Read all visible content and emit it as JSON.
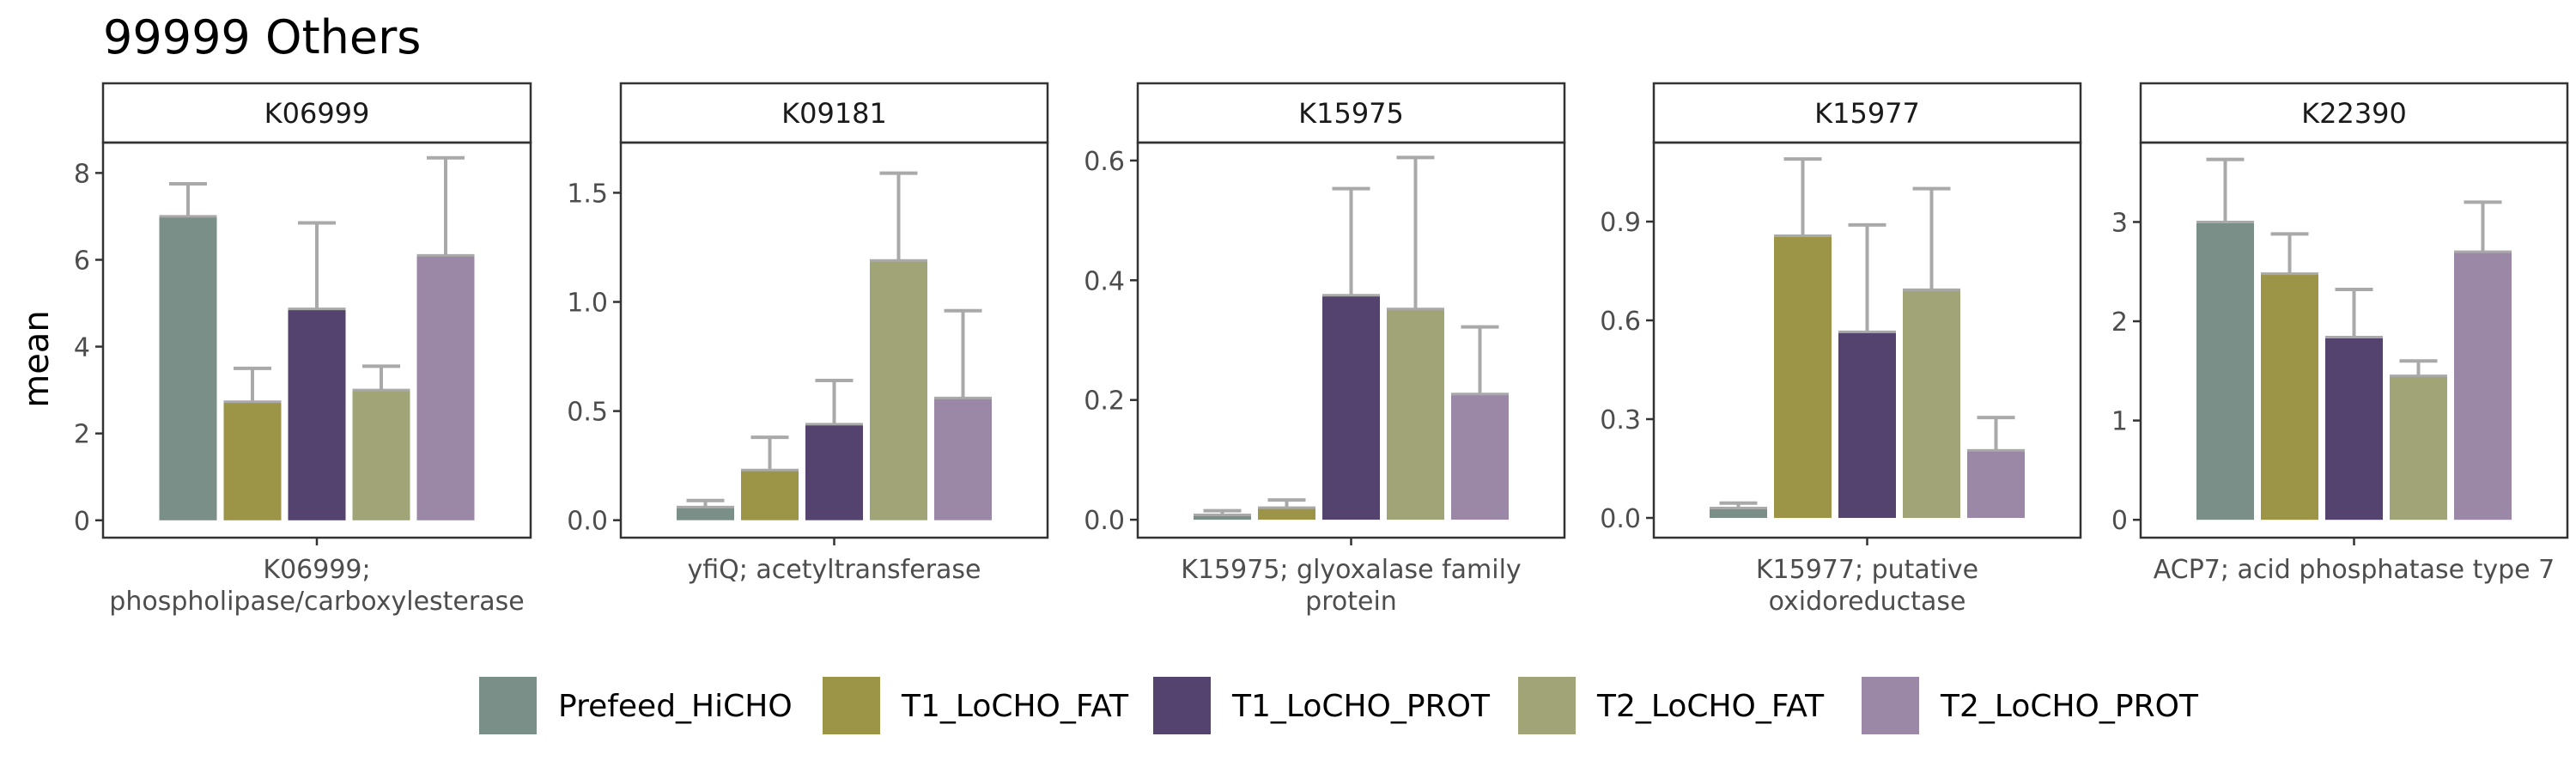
{
  "chart_title": "99999 Others",
  "ylabel": "mean",
  "colors": {
    "Prefeed_HiCHO": "#7a8f88",
    "T1_LoCHO_FAT": "#9c9446",
    "T1_LoCHO_PROT": "#55436f",
    "T2_LoCHO_FAT": "#a1a476",
    "T2_LoCHO_PROT": "#9b87a6",
    "error_bar": "#a9a9a9"
  },
  "legend": [
    "Prefeed_HiCHO",
    "T1_LoCHO_FAT",
    "T1_LoCHO_PROT",
    "T2_LoCHO_FAT",
    "T2_LoCHO_PROT"
  ],
  "chart_data": [
    {
      "type": "bar",
      "panel": "K06999",
      "xlabel_lines": [
        "K06999;",
        "phospholipase/carboxylesterase"
      ],
      "ylim": [
        -0.4,
        8.7
      ],
      "yticks": [
        0,
        2,
        4,
        6,
        8
      ],
      "ytick_labels": [
        "0",
        "2",
        "4",
        "6",
        "8"
      ],
      "series": [
        {
          "name": "Prefeed_HiCHO",
          "value": 7.0,
          "error_top": 7.75
        },
        {
          "name": "T1_LoCHO_FAT",
          "value": 2.73,
          "error_top": 3.5
        },
        {
          "name": "T1_LoCHO_PROT",
          "value": 4.87,
          "error_top": 6.85
        },
        {
          "name": "T2_LoCHO_FAT",
          "value": 3.0,
          "error_top": 3.55
        },
        {
          "name": "T2_LoCHO_PROT",
          "value": 6.1,
          "error_top": 8.35
        }
      ]
    },
    {
      "type": "bar",
      "panel": "K09181",
      "xlabel_lines": [
        "yfiQ; acetyltransferase"
      ],
      "ylim": [
        -0.08,
        1.73
      ],
      "yticks": [
        0,
        0.5,
        1.0,
        1.5
      ],
      "ytick_labels": [
        "0.0",
        "0.5",
        "1.0",
        "1.5"
      ],
      "series": [
        {
          "name": "Prefeed_HiCHO",
          "value": 0.06,
          "error_top": 0.09
        },
        {
          "name": "T1_LoCHO_FAT",
          "value": 0.23,
          "error_top": 0.38
        },
        {
          "name": "T1_LoCHO_PROT",
          "value": 0.44,
          "error_top": 0.64
        },
        {
          "name": "T2_LoCHO_FAT",
          "value": 1.19,
          "error_top": 1.59
        },
        {
          "name": "T2_LoCHO_PROT",
          "value": 0.56,
          "error_top": 0.96
        }
      ]
    },
    {
      "type": "bar",
      "panel": "K15975",
      "xlabel_lines": [
        "K15975; glyoxalase family",
        "protein"
      ],
      "ylim": [
        -0.03,
        0.63
      ],
      "yticks": [
        0,
        0.2,
        0.4,
        0.6
      ],
      "ytick_labels": [
        "0.0",
        "0.2",
        "0.4",
        "0.6"
      ],
      "series": [
        {
          "name": "Prefeed_HiCHO",
          "value": 0.008,
          "error_top": 0.015
        },
        {
          "name": "T1_LoCHO_FAT",
          "value": 0.02,
          "error_top": 0.033
        },
        {
          "name": "T1_LoCHO_PROT",
          "value": 0.375,
          "error_top": 0.553
        },
        {
          "name": "T2_LoCHO_FAT",
          "value": 0.352,
          "error_top": 0.605
        },
        {
          "name": "T2_LoCHO_PROT",
          "value": 0.21,
          "error_top": 0.322
        }
      ]
    },
    {
      "type": "bar",
      "panel": "K15977",
      "xlabel_lines": [
        "K15977; putative",
        "oxidoreductase"
      ],
      "ylim": [
        -0.06,
        1.14
      ],
      "yticks": [
        0,
        0.3,
        0.6,
        0.9
      ],
      "ytick_labels": [
        "0.0",
        "0.3",
        "0.6",
        "0.9"
      ],
      "series": [
        {
          "name": "Prefeed_HiCHO",
          "value": 0.03,
          "error_top": 0.045
        },
        {
          "name": "T1_LoCHO_FAT",
          "value": 0.857,
          "error_top": 1.09
        },
        {
          "name": "T1_LoCHO_PROT",
          "value": 0.565,
          "error_top": 0.89
        },
        {
          "name": "T2_LoCHO_FAT",
          "value": 0.693,
          "error_top": 1.0
        },
        {
          "name": "T2_LoCHO_PROT",
          "value": 0.205,
          "error_top": 0.305
        }
      ]
    },
    {
      "type": "bar",
      "panel": "K22390",
      "xlabel_lines": [
        "ACP7; acid phosphatase type 7"
      ],
      "ylim": [
        -0.18,
        3.8
      ],
      "yticks": [
        0,
        1,
        2,
        3
      ],
      "ytick_labels": [
        "0",
        "1",
        "2",
        "3"
      ],
      "series": [
        {
          "name": "Prefeed_HiCHO",
          "value": 3.0,
          "error_top": 3.63
        },
        {
          "name": "T1_LoCHO_FAT",
          "value": 2.48,
          "error_top": 2.88
        },
        {
          "name": "T1_LoCHO_PROT",
          "value": 1.84,
          "error_top": 2.32
        },
        {
          "name": "T2_LoCHO_FAT",
          "value": 1.45,
          "error_top": 1.6
        },
        {
          "name": "T2_LoCHO_PROT",
          "value": 2.7,
          "error_top": 3.2
        }
      ]
    }
  ]
}
